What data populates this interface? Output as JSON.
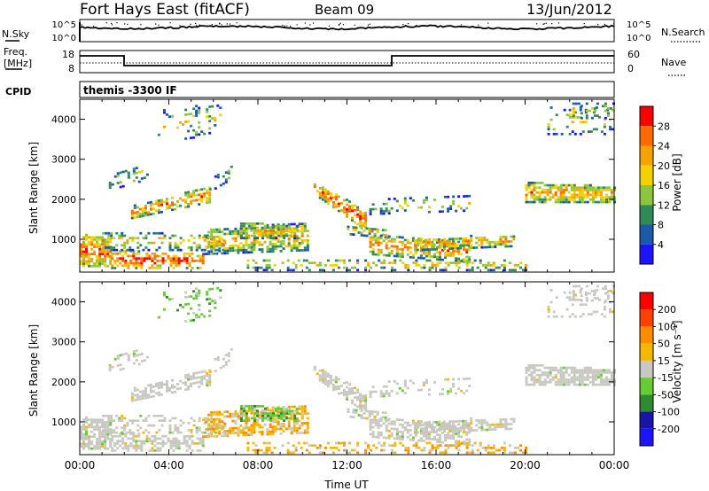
{
  "header": {
    "station": "Fort Hays East (fitACF)",
    "beam": "Beam 09",
    "date": "13/Jun/2012"
  },
  "status_panels": {
    "nsky": {
      "label": "N.Sky",
      "ticks": [
        "10^5",
        "10^0"
      ]
    },
    "nsearch": {
      "label": "N.Search",
      "ticks": [
        "10^5",
        "10^0"
      ]
    },
    "freq": {
      "label_line1": "Freq.",
      "label_line2": "[MHz]",
      "ticks": [
        "18",
        "8"
      ]
    },
    "nave": {
      "label": "Nave",
      "ticks": [
        "60",
        "0"
      ]
    },
    "cpid": {
      "label": "CPID",
      "value": "themis -3300 IF"
    }
  },
  "chart_data": [
    {
      "type": "heatmap",
      "name": "power",
      "ylabel": "Slant Range [km]",
      "xlabel": "",
      "yticks": [
        "1000",
        "2000",
        "3000",
        "4000"
      ],
      "ylim": [
        180,
        4500
      ],
      "xlim_hours": [
        0,
        24
      ],
      "colorbar": {
        "label": "Power [dB]",
        "ticks": [
          "4",
          "8",
          "12",
          "16",
          "20",
          "24",
          "28"
        ],
        "colors": [
          "#1a14ff",
          "#1a5aa8",
          "#2e8b57",
          "#8cc63f",
          "#f5d000",
          "#f5a300",
          "#ff6a00",
          "#ff0000"
        ]
      }
    },
    {
      "type": "heatmap",
      "name": "velocity",
      "ylabel": "Slant Range [km]",
      "xlabel": "Time UT",
      "yticks": [
        "1000",
        "2000",
        "3000",
        "4000"
      ],
      "xticks": [
        "00:00",
        "04:00",
        "08:00",
        "12:00",
        "16:00",
        "20:00",
        "00:00"
      ],
      "ylim": [
        180,
        4500
      ],
      "xlim_hours": [
        0,
        24
      ],
      "colorbar": {
        "label": "Velocity [m s⁻¹]",
        "ticks": [
          "200",
          "100",
          "50",
          "15",
          "-15",
          "-50",
          "-100",
          "-200"
        ],
        "colors": [
          "#1a14ff",
          "#1a14aa",
          "#2e8b2e",
          "#66cc33",
          "#c8c8c0",
          "#f5b800",
          "#ff8c00",
          "#ff4000",
          "#ff0000"
        ]
      }
    }
  ],
  "colors": {
    "ground_scatter": "#c8c8c0",
    "background": "#ffffff"
  }
}
